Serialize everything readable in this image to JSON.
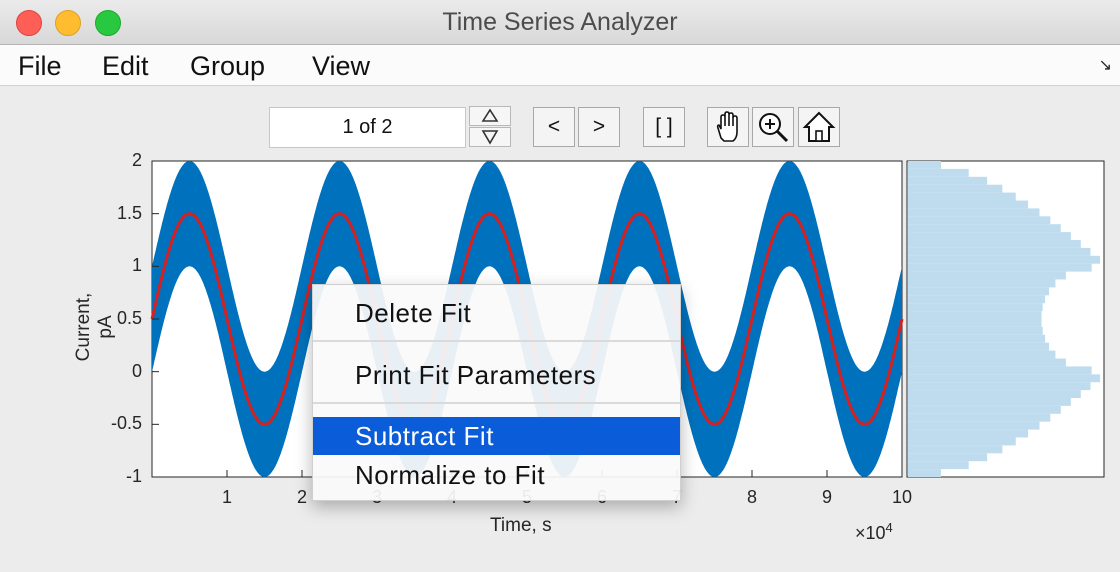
{
  "window": {
    "title": "Time Series Analyzer"
  },
  "menu": {
    "items": [
      "File",
      "Edit",
      "Group",
      "View"
    ]
  },
  "toolbar": {
    "pager_value": "1 of 2",
    "prev_label": "<",
    "next_label": ">",
    "bracket_label": "[ ]"
  },
  "plot": {
    "ylabel": "Current, pA",
    "xlabel": "Time, s",
    "x_exponent": "×10",
    "x_exponent_power": "4",
    "y_ticks": [
      "2",
      "1.5",
      "1",
      "0.5",
      "0",
      "-0.5",
      "-1"
    ],
    "x_ticks": [
      "1",
      "2",
      "3",
      "4",
      "5",
      "6",
      "7",
      "8",
      "9",
      "10"
    ]
  },
  "context_menu": {
    "items": [
      "Delete Fit",
      "Print Fit Parameters",
      "Subtract Fit",
      "Normalize to Fit"
    ],
    "highlighted": "Subtract Fit"
  },
  "colors": {
    "data_band": "#0072bd",
    "fit_line": "#d62020",
    "histogram": "#bfdcef",
    "highlight": "#0a5cd8"
  },
  "chart_data": {
    "type": "line",
    "series": [],
    "x": {
      "range": [
        0,
        10
      ],
      "units_exponent": 4
    },
    "y": {
      "range": [
        -1,
        2
      ]
    },
    "fit": {
      "form": "sine",
      "offset": 0.5,
      "amplitude": 1.0,
      "period": 2,
      "phase_peak_x": 0.5
    },
    "noise_band_halfwidth": 0.5,
    "histogram": {
      "orientation": "horizontal",
      "bins_y": [
        -1,
        2
      ]
    }
  }
}
